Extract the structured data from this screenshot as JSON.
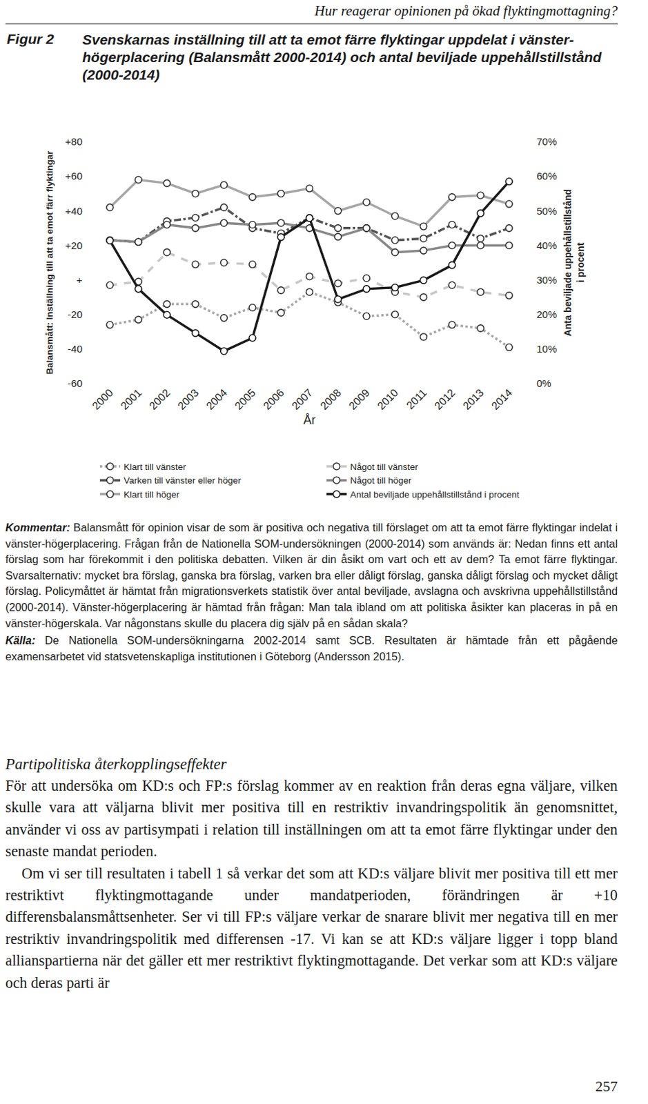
{
  "page_header": "Hur reagerar opinionen på ökad flyktingmottagning?",
  "figure_label": "Figur 2",
  "chart_data": {
    "type": "line",
    "title": "Svenskarnas inställning till att ta emot färre flyktingar uppdelat i vänster-högerplacering (Balansmått 2000-2014) och antal beviljade uppehållstillstånd (2000-2014)",
    "x_label": "År",
    "y_label": "Balansmått: Inställning till att ta emot färr flyktingar",
    "y2_label": "Anta beviljade uppehållstillstånd\ni procent",
    "categories": [
      "2000",
      "2001",
      "2002",
      "2003",
      "2004",
      "2005",
      "2006",
      "2007",
      "2008",
      "2009",
      "2010",
      "2011",
      "2012",
      "2013",
      "2014"
    ],
    "ylim": [
      -60,
      80
    ],
    "yticks": [
      {
        "value": 80,
        "label": "+80"
      },
      {
        "value": 60,
        "label": "+60"
      },
      {
        "value": 40,
        "label": "+40"
      },
      {
        "value": 20,
        "label": "+20"
      },
      {
        "value": 0,
        "label": "+"
      },
      -20,
      -40,
      -60
    ],
    "y2lim": [
      0,
      70
    ],
    "y2ticks": [
      {
        "value": 70,
        "label": "70%"
      },
      {
        "value": 60,
        "label": "60%"
      },
      {
        "value": 50,
        "label": "50%"
      },
      {
        "value": 40,
        "label": "40%"
      },
      {
        "value": 30,
        "label": "30%"
      },
      {
        "value": 20,
        "label": "20%"
      },
      {
        "value": 10,
        "label": "10%"
      },
      {
        "value": 0,
        "label": "0%"
      }
    ],
    "grid": false,
    "legend": "bottom",
    "series": [
      {
        "name": "Klart till vänster",
        "color": "#a8a8a8",
        "line_style": "dotted",
        "marker": "circle",
        "values": [
          -26,
          -23,
          -14,
          -14,
          -22,
          -16,
          -19,
          -7,
          -13,
          -21,
          -20,
          -33,
          -26,
          -28,
          -39
        ]
      },
      {
        "name": "Något till vänster",
        "color": "#c8c8c8",
        "line_style": "dashed",
        "marker": "circle",
        "values": [
          -3,
          -1,
          16,
          9,
          10,
          9,
          -6,
          2,
          -2,
          1,
          -7,
          -10,
          -3,
          -7,
          -9
        ]
      },
      {
        "name": "Varken till vänster eller höger",
        "color": "#555555",
        "line_style": "dashdot",
        "marker": "circle",
        "values": [
          23,
          22,
          34,
          36,
          42,
          30,
          27,
          36,
          30,
          30,
          23,
          24,
          32,
          24,
          30
        ]
      },
      {
        "name": "Något till höger",
        "color": "#888888",
        "line_style": "solid",
        "marker": "circle",
        "values": [
          23,
          22,
          32,
          30,
          33,
          32,
          33,
          30,
          25,
          30,
          16,
          17,
          20,
          20,
          20
        ]
      },
      {
        "name": "Klart till höger",
        "color": "#a6a6a6",
        "line_style": "solid",
        "marker": "circle",
        "values": [
          42,
          58,
          56,
          50,
          55,
          48,
          50,
          53,
          40,
          45,
          37,
          31,
          48,
          49,
          44
        ]
      },
      {
        "name": "Antal beviljade uppehållstillstånd i procent",
        "color": "#1a1a1a",
        "line_style": "solid",
        "marker": "circle",
        "axis": "y2",
        "values": [
          41.4,
          27.4,
          19.9,
          14.6,
          9.4,
          13.2,
          42.4,
          47.9,
          24.4,
          27.4,
          27.8,
          29.9,
          34.3,
          49.3,
          58.5
        ]
      }
    ]
  },
  "comment": {
    "label": "Kommentar:",
    "text": "Balansmått för opinion visar de som är positiva och negativa till förslaget om att ta emot färre flyktingar indelat i vänster-högerplacering. Frågan från de Nationella SOM-undersökningen (2000-2014) som används är: Nedan finns ett antal förslag som har förekommit i den politiska debatten. Vilken är din åsikt om vart och ett av dem? Ta emot färre flyktingar. Svarsalternativ: mycket bra förslag, ganska bra förslag, varken bra eller dåligt förslag, ganska dåligt förslag och mycket dåligt förslag. Policymåttet är hämtat från migrationsverkets statistik över antal beviljade, avslagna och avskrivna uppehållstillstånd (2000-2014). Vänster-högerplacering är hämtad från frågan: Man tala ibland om att politiska åsikter kan placeras in på en vänster-högerskala. Var någonstans skulle du placera dig själv på en sådan skala?"
  },
  "source": {
    "label": "Källa:",
    "text": "De Nationella SOM-undersökningarna 2002-2014 samt SCB. Resultaten är hämtade från ett pågående examensarbetet vid statsvetenskapliga institutionen i Göteborg (Andersson 2015)."
  },
  "section_heading": "Partipolitiska återkopplingseffekter",
  "paragraphs": [
    "För att undersöka om KD:s och FP:s förslag kommer av en reaktion från deras egna väljare, vilken skulle vara att väljarna blivit mer positiva till en restriktiv invandringspolitik än genomsnittet, använder vi oss av partisympati i relation till inställningen om att ta emot färre flyktingar under den senaste mandat perioden.",
    "Om vi ser till resultaten i tabell 1 så verkar det som att KD:s väljare blivit mer positiva till ett mer restriktivt flyktingmottagande under mandatperioden, förändringen är +10 differensbalansmåttsenheter. Ser vi till FP:s väljare verkar de snarare blivit mer negativa till en mer restriktiv invandringspolitik med differensen -17. Vi kan se att KD:s väljare ligger i topp bland allianspartierna när det gäller ett mer restriktivt flyktingmottagande. Det verkar som att KD:s väljare och deras parti är"
  ],
  "page_number": 257
}
